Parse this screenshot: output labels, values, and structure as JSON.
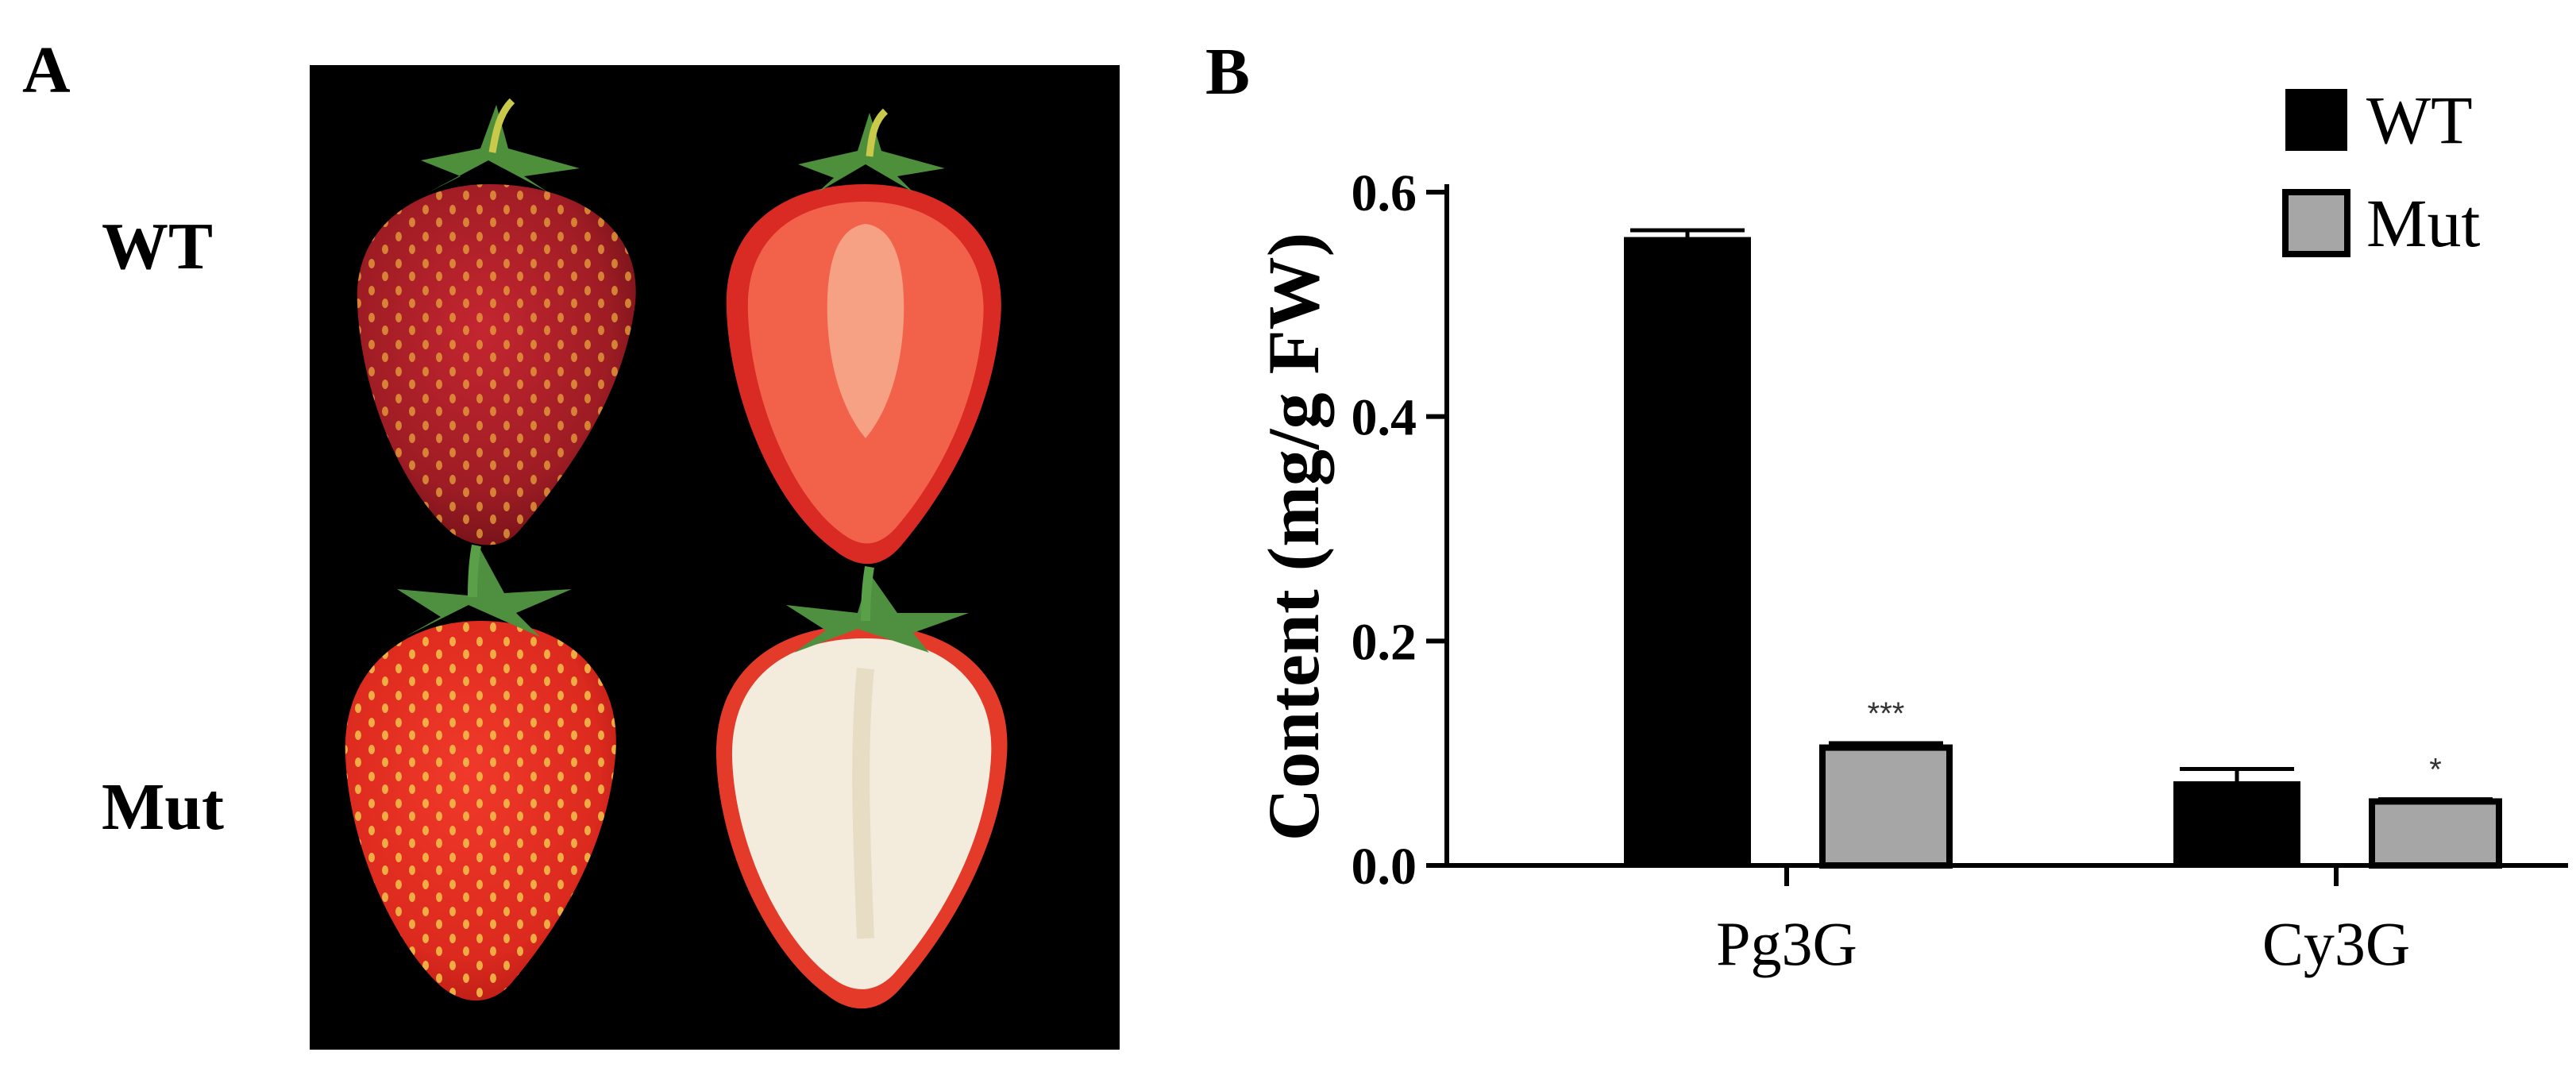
{
  "panel_a": {
    "letter": "A",
    "rows": [
      {
        "label": "WT",
        "flesh_color": "#f2624a",
        "skin_color": "#b3202a"
      },
      {
        "label": "Mut",
        "flesh_color": "#f3ecdc",
        "skin_color": "#e02a1f"
      }
    ]
  },
  "chart_data": {
    "type": "bar",
    "panel_letter": "B",
    "categories": [
      "Pg3G",
      "Cy3G"
    ],
    "series": [
      {
        "name": "WT",
        "color": "#000000",
        "values": [
          0.56,
          0.075
        ],
        "errors": [
          0.006,
          0.011
        ]
      },
      {
        "name": "Mut",
        "color": "#a6a6a6",
        "values": [
          0.105,
          0.057
        ],
        "errors": [
          0.004,
          0.002
        ]
      }
    ],
    "significance": [
      {
        "category": "Pg3G",
        "series": "Mut",
        "label": "***"
      },
      {
        "category": "Cy3G",
        "series": "Mut",
        "label": "*"
      }
    ],
    "ylabel": "Content (mg/g FW)",
    "ylim": [
      0,
      0.6
    ],
    "yticks": [
      "0.0",
      "0.2",
      "0.4",
      "0.6"
    ],
    "legend_position": "top-right",
    "grid": false
  }
}
